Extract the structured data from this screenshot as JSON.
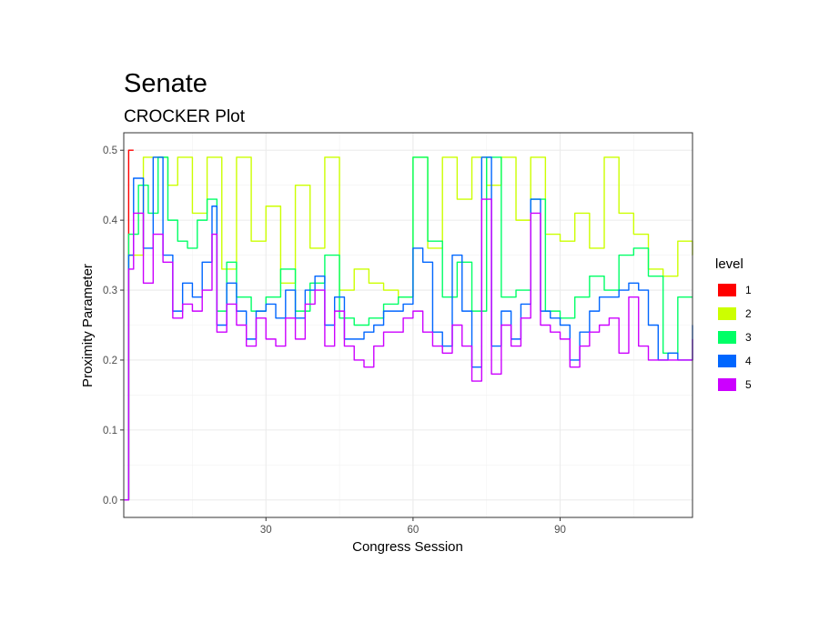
{
  "chart_data": {
    "type": "line",
    "title": "Senate",
    "subtitle": "CROCKER Plot",
    "xlabel": "Congress Session",
    "ylabel": "Proximity Parameter",
    "xlim": [
      1,
      117
    ],
    "ylim": [
      0.0,
      0.5
    ],
    "x_ticks": [
      30,
      60,
      90
    ],
    "y_ticks": [
      0.0,
      0.1,
      0.2,
      0.3,
      0.4,
      0.5
    ],
    "y_tick_labels": [
      "0.0",
      "0.1",
      "0.2",
      "0.3",
      "0.4",
      "0.5"
    ],
    "grid": true,
    "legend": {
      "title": "level",
      "position": "right"
    },
    "step_interpolation": true,
    "series": [
      {
        "name": "1",
        "color": "#FF0000",
        "x": [
          1,
          2,
          3
        ],
        "y": [
          0.0,
          0.5,
          0.5
        ]
      },
      {
        "name": "2",
        "color": "#CCFF00",
        "x": [
          1,
          2,
          5,
          8,
          10,
          12,
          15,
          18,
          21,
          24,
          27,
          30,
          33,
          36,
          39,
          42,
          45,
          48,
          51,
          54,
          57,
          60,
          63,
          66,
          69,
          72,
          75,
          78,
          81,
          84,
          87,
          90,
          93,
          96,
          99,
          102,
          105,
          108,
          111,
          114,
          117
        ],
        "y": [
          0.0,
          0.35,
          0.49,
          0.49,
          0.45,
          0.49,
          0.41,
          0.49,
          0.33,
          0.49,
          0.37,
          0.42,
          0.31,
          0.45,
          0.36,
          0.49,
          0.3,
          0.33,
          0.31,
          0.3,
          0.29,
          0.49,
          0.36,
          0.49,
          0.43,
          0.49,
          0.45,
          0.49,
          0.4,
          0.49,
          0.38,
          0.37,
          0.41,
          0.36,
          0.49,
          0.41,
          0.38,
          0.33,
          0.32,
          0.37,
          0.35
        ]
      },
      {
        "name": "3",
        "color": "#00FF66",
        "x": [
          1,
          2,
          4,
          6,
          8,
          10,
          12,
          14,
          16,
          18,
          20,
          22,
          24,
          27,
          30,
          33,
          36,
          39,
          42,
          45,
          48,
          51,
          54,
          57,
          60,
          63,
          66,
          69,
          72,
          75,
          78,
          81,
          84,
          87,
          90,
          93,
          96,
          99,
          102,
          105,
          108,
          111,
          114,
          117
        ],
        "y": [
          0.0,
          0.38,
          0.45,
          0.41,
          0.49,
          0.4,
          0.37,
          0.36,
          0.4,
          0.43,
          0.27,
          0.34,
          0.29,
          0.27,
          0.29,
          0.33,
          0.27,
          0.31,
          0.35,
          0.26,
          0.25,
          0.26,
          0.28,
          0.29,
          0.49,
          0.37,
          0.29,
          0.34,
          0.27,
          0.49,
          0.29,
          0.3,
          0.43,
          0.27,
          0.26,
          0.29,
          0.32,
          0.3,
          0.35,
          0.36,
          0.32,
          0.21,
          0.29,
          0.29
        ]
      },
      {
        "name": "4",
        "color": "#0066FF",
        "x": [
          1,
          2,
          3,
          5,
          7,
          9,
          11,
          13,
          15,
          17,
          19,
          20,
          22,
          24,
          26,
          28,
          30,
          32,
          34,
          36,
          38,
          40,
          42,
          44,
          46,
          48,
          50,
          52,
          54,
          56,
          58,
          60,
          62,
          64,
          66,
          68,
          70,
          72,
          74,
          76,
          78,
          80,
          82,
          84,
          86,
          88,
          90,
          92,
          94,
          96,
          98,
          100,
          102,
          104,
          106,
          108,
          110,
          112,
          114,
          117
        ],
        "y": [
          0.0,
          0.35,
          0.46,
          0.36,
          0.49,
          0.35,
          0.27,
          0.31,
          0.29,
          0.34,
          0.42,
          0.25,
          0.31,
          0.27,
          0.23,
          0.27,
          0.28,
          0.26,
          0.3,
          0.26,
          0.3,
          0.32,
          0.25,
          0.29,
          0.23,
          0.23,
          0.24,
          0.25,
          0.27,
          0.27,
          0.28,
          0.36,
          0.34,
          0.24,
          0.22,
          0.35,
          0.27,
          0.19,
          0.49,
          0.22,
          0.27,
          0.23,
          0.28,
          0.43,
          0.27,
          0.26,
          0.25,
          0.2,
          0.24,
          0.27,
          0.29,
          0.29,
          0.3,
          0.31,
          0.3,
          0.25,
          0.2,
          0.21,
          0.2,
          0.25
        ]
      },
      {
        "name": "5",
        "color": "#CC00FF",
        "x": [
          1,
          2,
          3,
          5,
          7,
          9,
          11,
          13,
          15,
          17,
          19,
          20,
          22,
          24,
          26,
          28,
          30,
          32,
          34,
          36,
          38,
          40,
          42,
          44,
          46,
          48,
          50,
          52,
          54,
          56,
          58,
          60,
          62,
          64,
          66,
          68,
          70,
          72,
          74,
          76,
          78,
          80,
          82,
          84,
          86,
          88,
          90,
          92,
          94,
          96,
          98,
          100,
          102,
          104,
          106,
          108,
          110,
          112,
          114,
          117
        ],
        "y": [
          0.0,
          0.33,
          0.41,
          0.31,
          0.38,
          0.34,
          0.26,
          0.28,
          0.27,
          0.3,
          0.38,
          0.24,
          0.28,
          0.25,
          0.22,
          0.26,
          0.23,
          0.22,
          0.26,
          0.23,
          0.28,
          0.3,
          0.22,
          0.27,
          0.22,
          0.2,
          0.19,
          0.22,
          0.24,
          0.24,
          0.26,
          0.27,
          0.24,
          0.22,
          0.21,
          0.25,
          0.22,
          0.17,
          0.43,
          0.18,
          0.25,
          0.22,
          0.26,
          0.41,
          0.25,
          0.24,
          0.23,
          0.19,
          0.22,
          0.24,
          0.25,
          0.26,
          0.21,
          0.29,
          0.22,
          0.2,
          0.2,
          0.2,
          0.2,
          0.23
        ]
      }
    ]
  }
}
